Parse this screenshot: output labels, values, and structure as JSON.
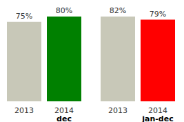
{
  "chart_data": [
    {
      "type": "bar",
      "categories": [
        "2013",
        "2014"
      ],
      "values": [
        75,
        80
      ],
      "value_labels": [
        "75%",
        "80%"
      ],
      "colors": [
        "#c8c8b8",
        "#008000"
      ],
      "data_labels": true,
      "tick_labels": "x",
      "annotation": "dec"
    },
    {
      "type": "bar",
      "categories": [
        "2013",
        "2014"
      ],
      "values": [
        82,
        79
      ],
      "value_labels": [
        "82%",
        "79%"
      ],
      "colors": [
        "#c8c8b8",
        "#ff0000"
      ],
      "data_labels": true,
      "tick_labels": "x",
      "annotation": "jan-dec"
    }
  ]
}
